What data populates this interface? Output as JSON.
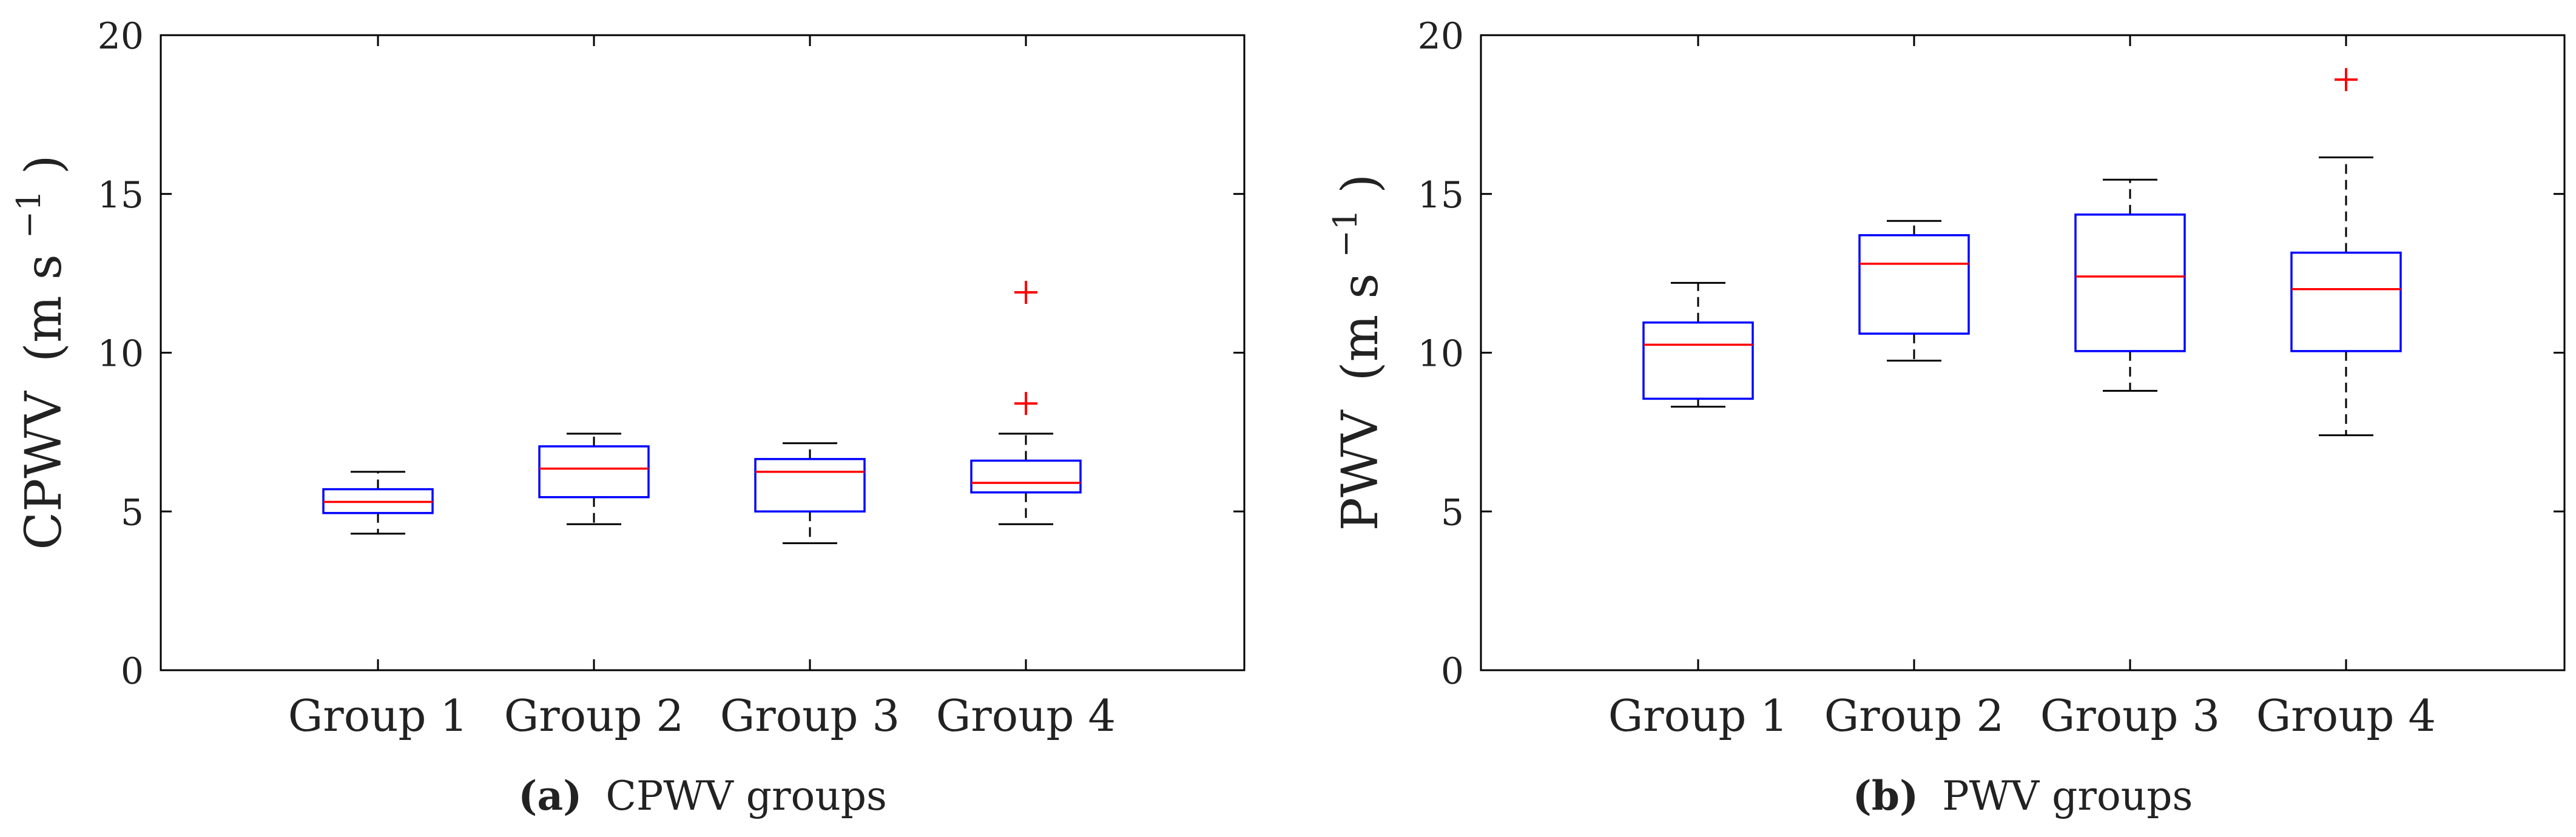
{
  "chart_data": [
    {
      "type": "box",
      "subplot_label": "a",
      "caption": "CPWV groups",
      "ylabel": "CPWV",
      "ylabel_unit": "(m s",
      "ylabel_exp": "−1",
      "ylabel_close": ")",
      "ylim": [
        0,
        20
      ],
      "yticks": [
        0,
        5,
        10,
        15,
        20
      ],
      "yticks_text": [
        "0",
        "5",
        "10",
        "15",
        "20"
      ],
      "categories": [
        "Group 1",
        "Group 2",
        "Group 3",
        "Group 4"
      ],
      "boxes": [
        {
          "whisker_low": 4.3,
          "q1": 4.95,
          "median": 5.3,
          "q3": 5.7,
          "whisker_high": 6.25,
          "outliers": []
        },
        {
          "whisker_low": 4.6,
          "q1": 5.45,
          "median": 6.35,
          "q3": 7.05,
          "whisker_high": 7.45,
          "outliers": []
        },
        {
          "whisker_low": 4.0,
          "q1": 5.0,
          "median": 6.25,
          "q3": 6.65,
          "whisker_high": 7.15,
          "outliers": []
        },
        {
          "whisker_low": 4.6,
          "q1": 5.6,
          "median": 5.9,
          "q3": 6.6,
          "whisker_high": 7.45,
          "outliers": [
            8.4,
            11.9
          ]
        }
      ]
    },
    {
      "type": "box",
      "subplot_label": "b",
      "caption": "PWV groups",
      "ylabel": "PWV",
      "ylabel_unit": "(m s",
      "ylabel_exp": "−1",
      "ylabel_close": ")",
      "ylim": [
        0,
        20
      ],
      "yticks": [
        0,
        5,
        10,
        15,
        20
      ],
      "yticks_text": [
        "0",
        "5",
        "10",
        "15",
        "20"
      ],
      "categories": [
        "Group 1",
        "Group 2",
        "Group 3",
        "Group 4"
      ],
      "boxes": [
        {
          "whisker_low": 8.3,
          "q1": 8.55,
          "median": 10.25,
          "q3": 10.95,
          "whisker_high": 12.2,
          "outliers": []
        },
        {
          "whisker_low": 9.75,
          "q1": 10.6,
          "median": 12.8,
          "q3": 13.7,
          "whisker_high": 14.15,
          "outliers": []
        },
        {
          "whisker_low": 8.8,
          "q1": 10.05,
          "median": 12.4,
          "q3": 14.35,
          "whisker_high": 15.45,
          "outliers": []
        },
        {
          "whisker_low": 7.4,
          "q1": 10.05,
          "median": 12.0,
          "q3": 13.15,
          "whisker_high": 16.15,
          "outliers": [
            18.6
          ]
        }
      ]
    }
  ],
  "colors": {
    "box": "#0000ff",
    "median": "#ff0000",
    "whisker": "#000000",
    "outlier": "#ff0000",
    "axis": "#000000"
  },
  "figure": {
    "caption_a_label": "(a)",
    "caption_b_label": "(b)"
  }
}
